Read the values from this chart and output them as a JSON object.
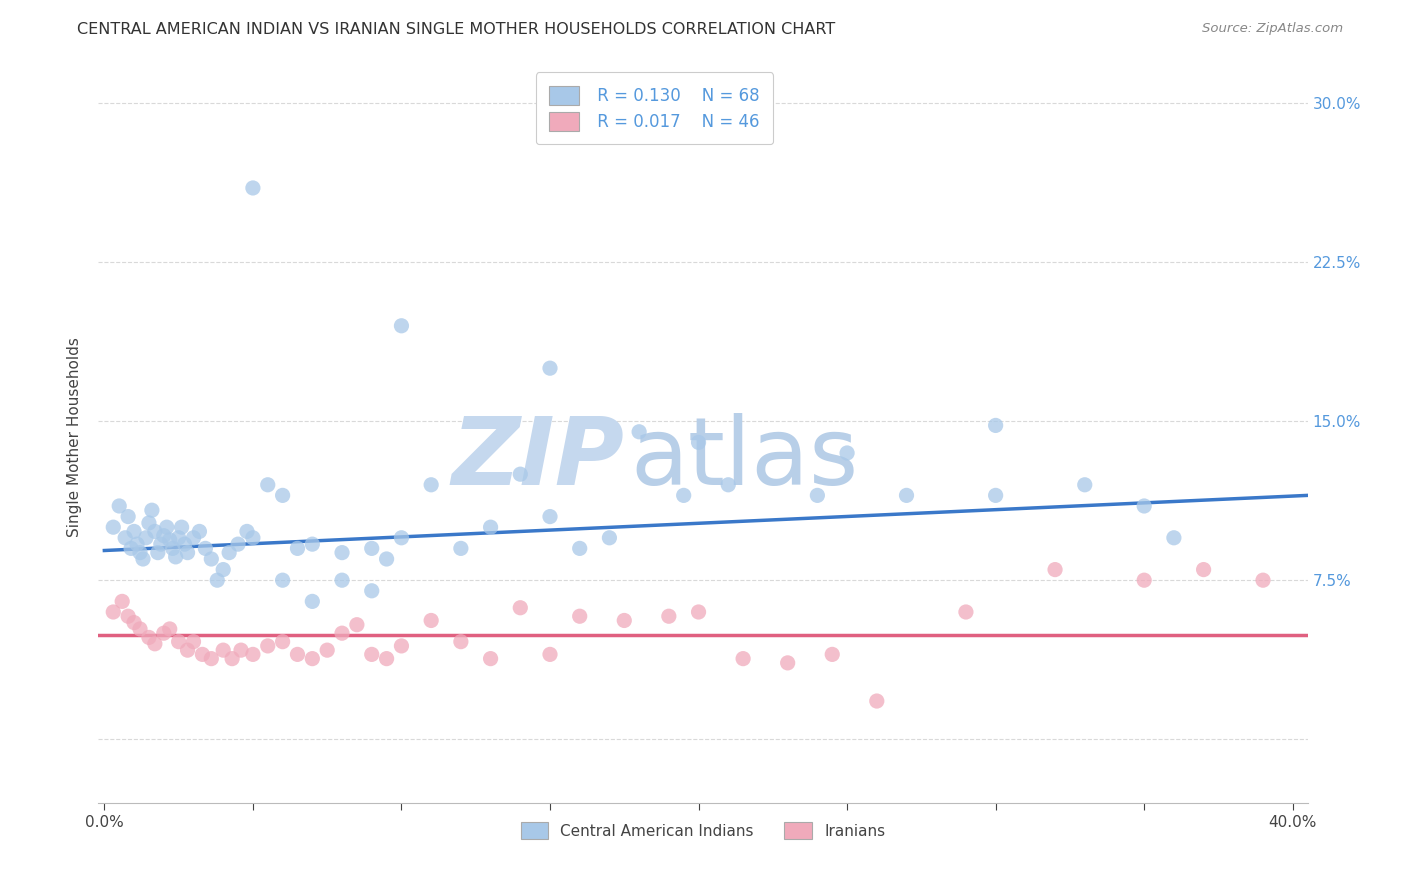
{
  "title": "CENTRAL AMERICAN INDIAN VS IRANIAN SINGLE MOTHER HOUSEHOLDS CORRELATION CHART",
  "source": "Source: ZipAtlas.com",
  "ylabel": "Single Mother Households",
  "x_ticks": [
    0.0,
    0.05,
    0.1,
    0.15,
    0.2,
    0.25,
    0.3,
    0.35,
    0.4
  ],
  "y_ticks_right": [
    0.0,
    0.075,
    0.15,
    0.225,
    0.3
  ],
  "xlim": [
    -0.002,
    0.405
  ],
  "ylim": [
    -0.03,
    0.315
  ],
  "background_color": "#ffffff",
  "grid_color": "#d0d0d0",
  "blue_color": "#a8c8e8",
  "pink_color": "#f0aabb",
  "blue_line_color": "#3a78c9",
  "pink_line_color": "#e06080",
  "right_axis_color": "#5599dd",
  "legend_r1": "R = 0.130",
  "legend_n1": "N = 68",
  "legend_r2": "R = 0.017",
  "legend_n2": "N = 46",
  "blue_scatter_x": [
    0.003,
    0.005,
    0.007,
    0.008,
    0.009,
    0.01,
    0.011,
    0.012,
    0.013,
    0.014,
    0.015,
    0.016,
    0.017,
    0.018,
    0.019,
    0.02,
    0.021,
    0.022,
    0.023,
    0.024,
    0.025,
    0.026,
    0.027,
    0.028,
    0.03,
    0.032,
    0.034,
    0.036,
    0.038,
    0.04,
    0.042,
    0.045,
    0.048,
    0.05,
    0.055,
    0.06,
    0.065,
    0.07,
    0.08,
    0.09,
    0.095,
    0.1,
    0.11,
    0.12,
    0.13,
    0.14,
    0.15,
    0.16,
    0.17,
    0.18,
    0.195,
    0.21,
    0.24,
    0.27,
    0.3,
    0.33,
    0.36,
    0.05,
    0.1,
    0.15,
    0.2,
    0.25,
    0.3,
    0.35,
    0.06,
    0.07,
    0.08,
    0.09
  ],
  "blue_scatter_y": [
    0.1,
    0.11,
    0.095,
    0.105,
    0.09,
    0.098,
    0.092,
    0.088,
    0.085,
    0.095,
    0.102,
    0.108,
    0.098,
    0.088,
    0.092,
    0.096,
    0.1,
    0.094,
    0.09,
    0.086,
    0.095,
    0.1,
    0.092,
    0.088,
    0.095,
    0.098,
    0.09,
    0.085,
    0.075,
    0.08,
    0.088,
    0.092,
    0.098,
    0.095,
    0.12,
    0.115,
    0.09,
    0.092,
    0.088,
    0.09,
    0.085,
    0.095,
    0.12,
    0.09,
    0.1,
    0.125,
    0.105,
    0.09,
    0.095,
    0.145,
    0.115,
    0.12,
    0.115,
    0.115,
    0.115,
    0.12,
    0.095,
    0.26,
    0.195,
    0.175,
    0.14,
    0.135,
    0.148,
    0.11,
    0.075,
    0.065,
    0.075,
    0.07
  ],
  "pink_scatter_x": [
    0.003,
    0.006,
    0.008,
    0.01,
    0.012,
    0.015,
    0.017,
    0.02,
    0.022,
    0.025,
    0.028,
    0.03,
    0.033,
    0.036,
    0.04,
    0.043,
    0.046,
    0.05,
    0.055,
    0.06,
    0.065,
    0.07,
    0.075,
    0.08,
    0.085,
    0.09,
    0.095,
    0.1,
    0.11,
    0.12,
    0.13,
    0.14,
    0.15,
    0.16,
    0.175,
    0.19,
    0.2,
    0.215,
    0.23,
    0.245,
    0.26,
    0.29,
    0.32,
    0.35,
    0.37,
    0.39
  ],
  "pink_scatter_y": [
    0.06,
    0.065,
    0.058,
    0.055,
    0.052,
    0.048,
    0.045,
    0.05,
    0.052,
    0.046,
    0.042,
    0.046,
    0.04,
    0.038,
    0.042,
    0.038,
    0.042,
    0.04,
    0.044,
    0.046,
    0.04,
    0.038,
    0.042,
    0.05,
    0.054,
    0.04,
    0.038,
    0.044,
    0.056,
    0.046,
    0.038,
    0.062,
    0.04,
    0.058,
    0.056,
    0.058,
    0.06,
    0.038,
    0.036,
    0.04,
    0.018,
    0.06,
    0.08,
    0.075,
    0.08,
    0.075
  ],
  "blue_trend_x": [
    0.0,
    0.405
  ],
  "blue_trend_y": [
    0.089,
    0.115
  ],
  "pink_trend_y": 0.049,
  "watermark_zip_color": "#c5d8ee",
  "watermark_atlas_color": "#b8cfe8"
}
